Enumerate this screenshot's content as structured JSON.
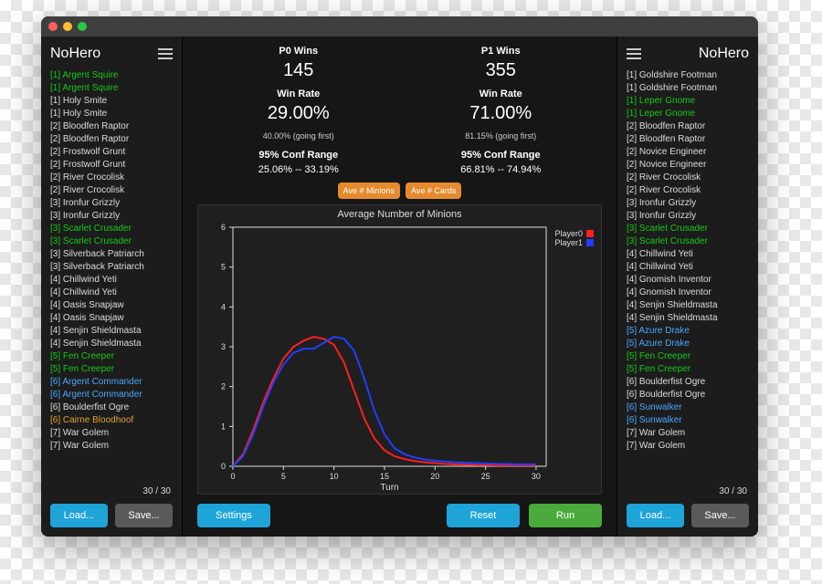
{
  "window": {
    "traffic_colors": [
      "#ff5f57",
      "#febc2e",
      "#28c840"
    ],
    "bg": "#161616"
  },
  "left": {
    "title": "NoHero",
    "count": "30 / 30",
    "load": "Load...",
    "save": "Save...",
    "cards": [
      {
        "t": "[1] Argent Squire",
        "c": "#16c916"
      },
      {
        "t": "[1] Argent Squire",
        "c": "#16c916"
      },
      {
        "t": "[1] Holy Smite",
        "c": "#dddddd"
      },
      {
        "t": "[1] Holy Smite",
        "c": "#dddddd"
      },
      {
        "t": "[2] Bloodfen Raptor",
        "c": "#dddddd"
      },
      {
        "t": "[2] Bloodfen Raptor",
        "c": "#dddddd"
      },
      {
        "t": "[2] Frostwolf Grunt",
        "c": "#dddddd"
      },
      {
        "t": "[2] Frostwolf Grunt",
        "c": "#dddddd"
      },
      {
        "t": "[2] River Crocolisk",
        "c": "#dddddd"
      },
      {
        "t": "[2] River Crocolisk",
        "c": "#dddddd"
      },
      {
        "t": "[3] Ironfur Grizzly",
        "c": "#dddddd"
      },
      {
        "t": "[3] Ironfur Grizzly",
        "c": "#dddddd"
      },
      {
        "t": "[3] Scarlet Crusader",
        "c": "#16c916"
      },
      {
        "t": "[3] Scarlet Crusader",
        "c": "#16c916"
      },
      {
        "t": "[3] Silverback Patriarch",
        "c": "#dddddd"
      },
      {
        "t": "[3] Silverback Patriarch",
        "c": "#dddddd"
      },
      {
        "t": "[4] Chillwind Yeti",
        "c": "#dddddd"
      },
      {
        "t": "[4] Chillwind Yeti",
        "c": "#dddddd"
      },
      {
        "t": "[4] Oasis Snapjaw",
        "c": "#dddddd"
      },
      {
        "t": "[4] Oasis Snapjaw",
        "c": "#dddddd"
      },
      {
        "t": "[4] Senjin Shieldmasta",
        "c": "#dddddd"
      },
      {
        "t": "[4] Senjin Shieldmasta",
        "c": "#dddddd"
      },
      {
        "t": "[5] Fen Creeper",
        "c": "#16c916"
      },
      {
        "t": "[5] Fen Creeper",
        "c": "#16c916"
      },
      {
        "t": "[6] Argent Commander",
        "c": "#4aa8ff"
      },
      {
        "t": "[6] Argent Commander",
        "c": "#4aa8ff"
      },
      {
        "t": "[6] Boulderfist Ogre",
        "c": "#dddddd"
      },
      {
        "t": "[6] Cairne Bloodhoof",
        "c": "#e0a030"
      },
      {
        "t": "[7] War Golem",
        "c": "#dddddd"
      },
      {
        "t": "[7] War Golem",
        "c": "#dddddd"
      }
    ]
  },
  "right": {
    "title": "NoHero",
    "count": "30 / 30",
    "load": "Load...",
    "save": "Save...",
    "cards": [
      {
        "t": "[1] Goldshire Footman",
        "c": "#dddddd"
      },
      {
        "t": "[1] Goldshire Footman",
        "c": "#dddddd"
      },
      {
        "t": "[1] Leper Gnome",
        "c": "#16c916"
      },
      {
        "t": "[1] Leper Gnome",
        "c": "#16c916"
      },
      {
        "t": "[2] Bloodfen Raptor",
        "c": "#dddddd"
      },
      {
        "t": "[2] Bloodfen Raptor",
        "c": "#dddddd"
      },
      {
        "t": "[2] Novice Engineer",
        "c": "#dddddd"
      },
      {
        "t": "[2] Novice Engineer",
        "c": "#dddddd"
      },
      {
        "t": "[2] River Crocolisk",
        "c": "#dddddd"
      },
      {
        "t": "[2] River Crocolisk",
        "c": "#dddddd"
      },
      {
        "t": "[3] Ironfur Grizzly",
        "c": "#dddddd"
      },
      {
        "t": "[3] Ironfur Grizzly",
        "c": "#dddddd"
      },
      {
        "t": "[3] Scarlet Crusader",
        "c": "#16c916"
      },
      {
        "t": "[3] Scarlet Crusader",
        "c": "#16c916"
      },
      {
        "t": "[4] Chillwind Yeti",
        "c": "#dddddd"
      },
      {
        "t": "[4] Chillwind Yeti",
        "c": "#dddddd"
      },
      {
        "t": "[4] Gnomish Inventor",
        "c": "#dddddd"
      },
      {
        "t": "[4] Gnomish Inventor",
        "c": "#dddddd"
      },
      {
        "t": "[4] Senjin Shieldmasta",
        "c": "#dddddd"
      },
      {
        "t": "[4] Senjin Shieldmasta",
        "c": "#dddddd"
      },
      {
        "t": "[5] Azure Drake",
        "c": "#4aa8ff"
      },
      {
        "t": "[5] Azure Drake",
        "c": "#4aa8ff"
      },
      {
        "t": "[5] Fen Creeper",
        "c": "#16c916"
      },
      {
        "t": "[5] Fen Creeper",
        "c": "#16c916"
      },
      {
        "t": "[6] Boulderfist Ogre",
        "c": "#dddddd"
      },
      {
        "t": "[6] Boulderfist Ogre",
        "c": "#dddddd"
      },
      {
        "t": "[6] Sunwalker",
        "c": "#4aa8ff"
      },
      {
        "t": "[6] Sunwalker",
        "c": "#4aa8ff"
      },
      {
        "t": "[7] War Golem",
        "c": "#dddddd"
      },
      {
        "t": "[7] War Golem",
        "c": "#dddddd"
      }
    ]
  },
  "stats": {
    "p0": {
      "wins_label": "P0 Wins",
      "wins": "145",
      "rate_label": "Win Rate",
      "rate": "29.00%",
      "first": "40.00% (going first)",
      "range_label": "95% Conf Range",
      "range": "25.06% -- 33.19%"
    },
    "p1": {
      "wins_label": "P1 Wins",
      "wins": "355",
      "rate_label": "Win Rate",
      "rate": "71.00%",
      "first": "81.15% (going first)",
      "range_label": "95% Conf Range",
      "range": "66.81% -- 74.94%"
    }
  },
  "tabs": {
    "minions": "Ave # Minions",
    "cards": "Ave # Cards"
  },
  "chart": {
    "title": "Average Number of Minions",
    "xlabel": "Turn",
    "xlim": [
      0,
      31
    ],
    "ylim": [
      0,
      6
    ],
    "xticks": [
      0,
      5,
      10,
      15,
      20,
      25,
      30
    ],
    "yticks": [
      0,
      1,
      2,
      3,
      4,
      5,
      6
    ],
    "plot_bg": "#1f1f1f",
    "axis_color": "#dddddd",
    "text_color": "#dddddd",
    "line_width": 2,
    "series": [
      {
        "name": "Player0",
        "color": "#ff1f1f",
        "y": [
          0,
          0.3,
          0.9,
          1.6,
          2.2,
          2.7,
          3.0,
          3.15,
          3.25,
          3.2,
          3.05,
          2.6,
          1.9,
          1.2,
          0.7,
          0.4,
          0.25,
          0.18,
          0.13,
          0.1,
          0.08,
          0.06,
          0.05,
          0.04,
          0.03,
          0.03,
          0.02,
          0.02,
          0.02,
          0.02,
          0.02
        ]
      },
      {
        "name": "Player1",
        "color": "#1f3fff",
        "y": [
          0,
          0.25,
          0.8,
          1.5,
          2.1,
          2.55,
          2.85,
          2.95,
          2.95,
          3.1,
          3.25,
          3.2,
          2.9,
          2.2,
          1.4,
          0.8,
          0.45,
          0.3,
          0.22,
          0.17,
          0.14,
          0.12,
          0.1,
          0.09,
          0.08,
          0.07,
          0.06,
          0.06,
          0.05,
          0.05,
          0.05
        ]
      }
    ]
  },
  "buttons": {
    "settings": "Settings",
    "reset": "Reset",
    "run": "Run"
  }
}
